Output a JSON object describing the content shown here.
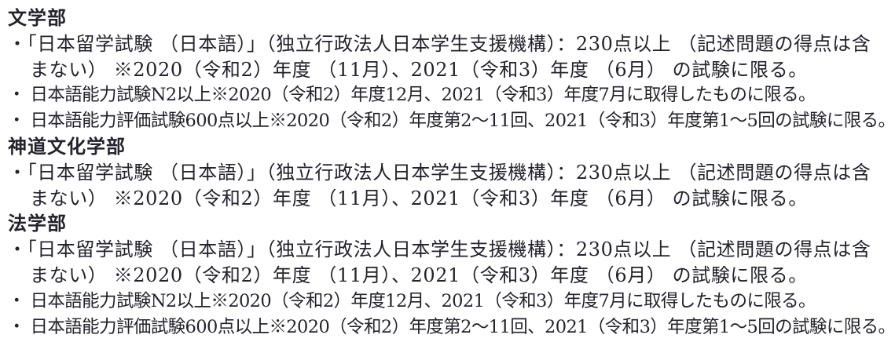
{
  "document": {
    "background_color": "#ffffff",
    "text_color": "#23232d",
    "language": "ja"
  },
  "sections": [
    {
      "heading": "文学部",
      "items": [
        {
          "lines": [
            "・「日本留学試験 （日本語）」（独立行政法人日本学生支援機構）：230点以上 （記述問題の得点は含",
            "まない） ※2020（令和2）年度 （11月）、2021（令和3）年度 （6月） の試験に限る。"
          ]
        },
        {
          "lines": [
            "・ 日本語能力試験N2以上※2020（令和2）年度12月、2021（令和3）年度7月に取得したものに限る。"
          ]
        },
        {
          "lines": [
            "・ 日本語能力評価試験600点以上※2020（令和2）年度第2～11回、2021（令和3）年度第1～5回の試験に限る。"
          ]
        }
      ]
    },
    {
      "heading": "神道文化学部",
      "items": [
        {
          "lines": [
            "・「日本留学試験 （日本語）」（独立行政法人日本学生支援機構）：230点以上 （記述問題の得点は含",
            "まない） ※2020（令和2）年度 （11月）、2021（令和3）年度 （6月） の試験に限る。"
          ]
        }
      ]
    },
    {
      "heading": "法学部",
      "items": [
        {
          "lines": [
            "・「日本留学試験 （日本語）」（独立行政法人日本学生支援機構）：230点以上 （記述問題の得点は含",
            "まない） ※2020（令和2）年度 （11月）、2021（令和3）年度 （6月） の試験に限る。"
          ]
        },
        {
          "lines": [
            "・ 日本語能力試験N2以上※2020（令和2）年度12月、2021（令和3）年度7月に取得したものに限る。"
          ]
        },
        {
          "lines": [
            "・ 日本語能力評価試験600点以上※2020（令和2）年度第2～11回、2021（令和3）年度第1～5回の試験に限る。"
          ]
        }
      ]
    }
  ]
}
